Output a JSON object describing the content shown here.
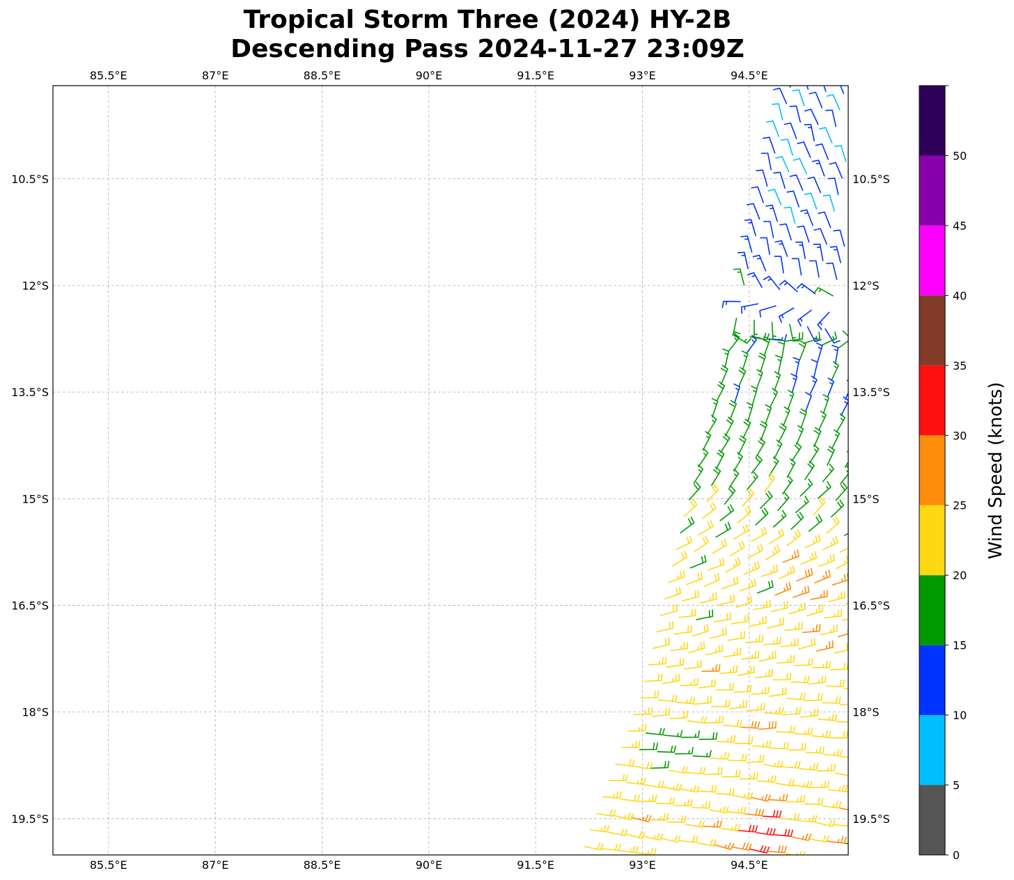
{
  "chart_data": {
    "type": "wind-barb-map",
    "title_line1": "Tropical Storm Three (2024) HY-2B",
    "title_line2": "Descending Pass 2024-11-27 23:09Z",
    "lon_range": [
      84.72,
      95.89
    ],
    "lat_range_south": [
      9.19,
      20.01
    ],
    "lon_ticks": [
      85.5,
      87,
      88.5,
      90,
      91.5,
      93,
      94.5
    ],
    "lon_tick_labels": [
      "85.5°E",
      "87°E",
      "88.5°E",
      "90°E",
      "91.5°E",
      "93°E",
      "94.5°E"
    ],
    "lat_ticks": [
      10.5,
      12,
      13.5,
      15,
      16.5,
      18,
      19.5
    ],
    "lat_tick_labels": [
      "10.5°S",
      "12°S",
      "13.5°S",
      "15°S",
      "16.5°S",
      "18°S",
      "19.5°S"
    ],
    "grid": true,
    "colorbar": {
      "label": "Wind Speed (knots)",
      "bounds": [
        0,
        5,
        10,
        15,
        20,
        25,
        30,
        35,
        40,
        45,
        50,
        55
      ],
      "colors": [
        "#555555",
        "#00bfff",
        "#0033ff",
        "#009900",
        "#ffd814",
        "#ff8c0a",
        "#ff1010",
        "#803c28",
        "#ff00ff",
        "#8800aa",
        "#2d005a"
      ],
      "ticks": [
        0,
        5,
        10,
        15,
        20,
        25,
        30,
        35,
        40,
        45,
        50
      ],
      "tick_labels": [
        "0",
        "5",
        "10",
        "15",
        "20",
        "25",
        "30",
        "35",
        "40",
        "45",
        "50"
      ]
    },
    "wind_field": {
      "units": "knots",
      "swath_west_edge": [
        [
          9.2,
          95.0
        ],
        [
          13.5,
          94.0
        ],
        [
          15.3,
          93.5
        ],
        [
          17.8,
          92.9
        ],
        [
          19.9,
          92.1
        ]
      ],
      "swath_east_edge_lon": 95.89,
      "speed_by_lat": [
        [
          9.2,
          12.5
        ],
        [
          11,
          13.5
        ],
        [
          12,
          16
        ],
        [
          13.5,
          17
        ],
        [
          15,
          18
        ],
        [
          15.8,
          21
        ],
        [
          17,
          23
        ],
        [
          18.5,
          22.5
        ],
        [
          20,
          24
        ]
      ],
      "direction_from_by_lat": [
        [
          9.2,
          340
        ],
        [
          12,
          345
        ],
        [
          13,
          15
        ],
        [
          14.5,
          30
        ],
        [
          15.5,
          55
        ],
        [
          16.5,
          75
        ],
        [
          18,
          90
        ],
        [
          20,
          100
        ]
      ],
      "anomalies": [
        {
          "lat": 11.0,
          "lon": 95.4,
          "radius_deg": 1.6,
          "delta_kt": -3
        },
        {
          "lat": 13.5,
          "lon": 95.7,
          "radius_deg": 0.6,
          "delta_kt": -4
        },
        {
          "lat": 16.2,
          "lon": 95.2,
          "radius_deg": 0.55,
          "delta_kt": 5
        },
        {
          "lat": 18.2,
          "lon": 94.5,
          "radius_deg": 0.3,
          "delta_kt": 4
        },
        {
          "lat": 19.8,
          "lon": 94.6,
          "radius_deg": 0.45,
          "delta_kt": 9
        },
        {
          "lat": 18.5,
          "lon": 93.4,
          "radius_deg": 0.45,
          "delta_kt": -5
        },
        {
          "lat": 16.6,
          "lon": 93.6,
          "radius_deg": 0.2,
          "delta_kt": -4
        },
        {
          "lat": 19.9,
          "lon": 95.8,
          "radius_deg": 0.2,
          "delta_kt": -6
        }
      ]
    }
  }
}
